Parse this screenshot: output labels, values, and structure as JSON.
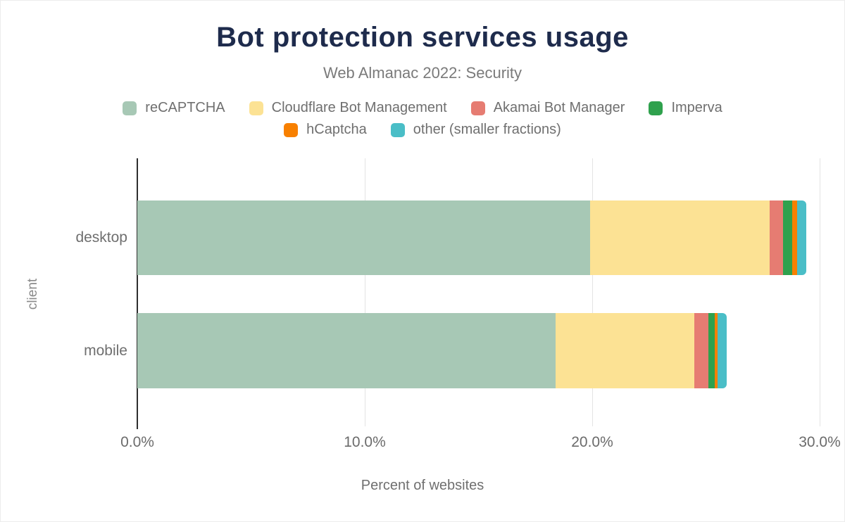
{
  "title": "Bot protection services usage",
  "subtitle": "Web Almanac 2022: Security",
  "chart_data": {
    "type": "bar",
    "orientation": "horizontal",
    "stacked": true,
    "title": "Bot protection services usage",
    "subtitle": "Web Almanac 2022: Security",
    "categories": [
      "desktop",
      "mobile"
    ],
    "series": [
      {
        "name": "reCAPTCHA",
        "color": "#a7c8b5",
        "values": [
          19.9,
          18.4
        ],
        "labels": [
          "19.9%",
          "18.4%"
        ]
      },
      {
        "name": "Cloudflare Bot Management",
        "color": "#fce294",
        "values": [
          7.9,
          6.1
        ],
        "labels": [
          "7.9%",
          "6.1%"
        ]
      },
      {
        "name": "Akamai Bot Manager",
        "color": "#e67c72",
        "values": [
          0.6,
          0.6
        ],
        "labels": [
          "",
          ""
        ]
      },
      {
        "name": "Imperva",
        "color": "#2fa14d",
        "values": [
          0.4,
          0.3
        ],
        "labels": [
          "",
          ""
        ]
      },
      {
        "name": "hCaptcha",
        "color": "#f88000",
        "values": [
          0.2,
          0.1
        ],
        "labels": [
          "",
          ""
        ]
      },
      {
        "name": "other (smaller fractions)",
        "color": "#4abec7",
        "values": [
          0.4,
          0.4
        ],
        "labels": [
          "",
          ""
        ]
      }
    ],
    "totals": [
      29.4,
      25.9
    ],
    "xlabel": "Percent of websites",
    "ylabel": "client",
    "x_ticks": [
      "0.0%",
      "10.0%",
      "20.0%",
      "30.0%"
    ],
    "x_tick_values": [
      0,
      10,
      20,
      30
    ],
    "xlim": [
      0,
      30
    ],
    "grid": true,
    "legend_position": "top",
    "legend_rows": [
      [
        0,
        1,
        2,
        3
      ],
      [
        4,
        5
      ]
    ]
  },
  "style": {
    "title_color": "#1e2b4c",
    "subtitle_color": "#7a7a7a",
    "axis_text_color": "#6b6b6b",
    "gridline_color": "#e4e4e4",
    "axis_line_color": "#2e2e2e",
    "value_label_color": "#000000"
  }
}
